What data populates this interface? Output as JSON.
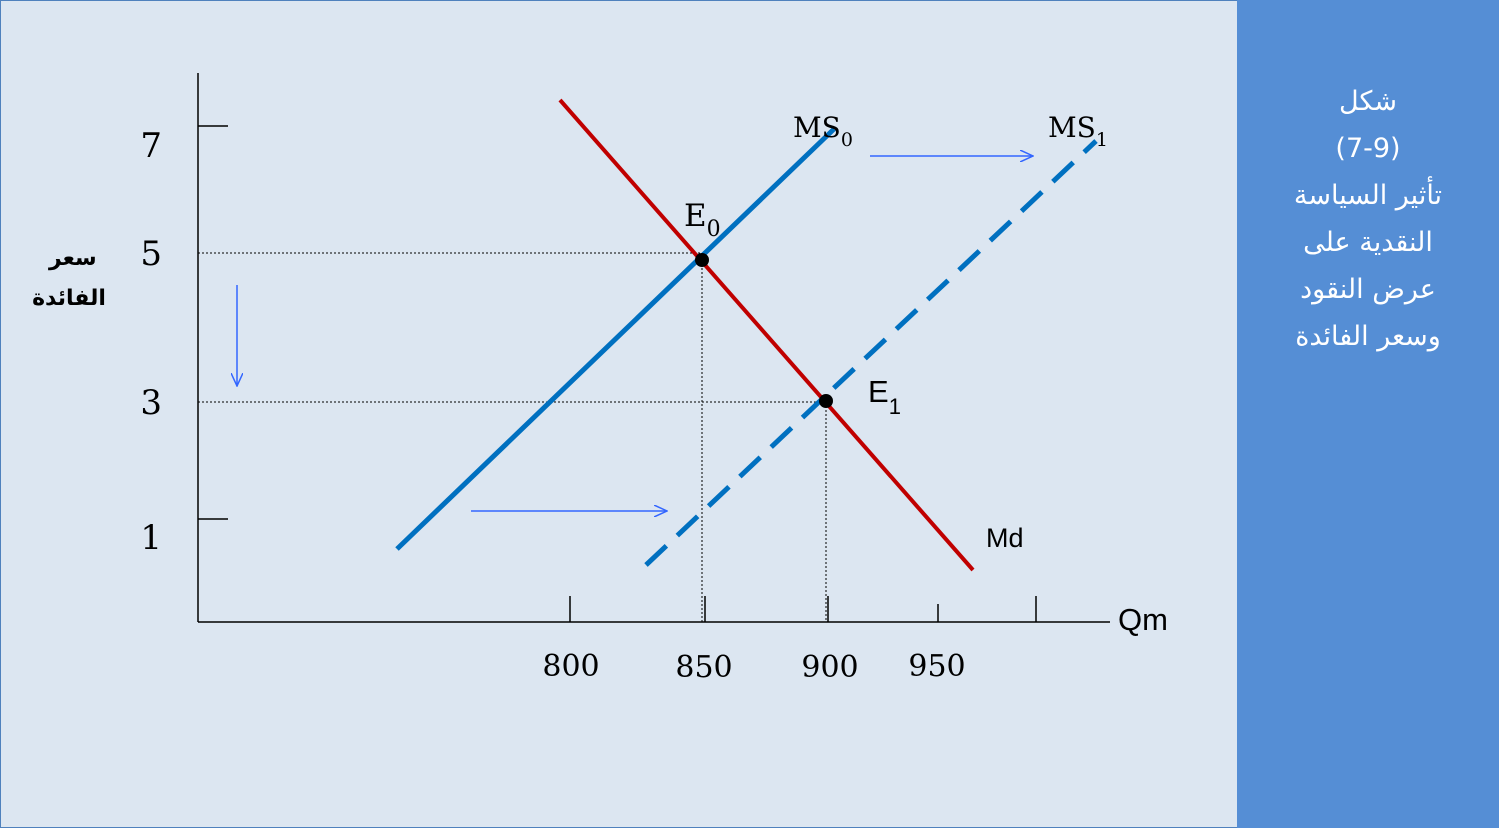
{
  "panel": {
    "lines": [
      "شكل",
      "(7-9)",
      "تأثير السياسة",
      "النقدية على",
      "عرض النقود",
      "وسعر الفائدة"
    ]
  },
  "colors": {
    "background": "#dce6f1",
    "panel": "#558ed5",
    "supply": "#0070c0",
    "demand": "#c00000",
    "arrow": "#3366ff"
  },
  "chart_data": {
    "type": "line",
    "ylabel_lines": [
      "سعر",
      "الفائدة"
    ],
    "xlabel": "Qm",
    "y_ticks": [
      7,
      5,
      3,
      1
    ],
    "x_ticks": [
      800,
      850,
      900,
      950
    ],
    "series": [
      {
        "name": "MS0",
        "label_main": "MS",
        "label_sub": "0",
        "style": "solid",
        "color": "#0070c0"
      },
      {
        "name": "MS1",
        "label_main": "MS",
        "label_sub": "1",
        "style": "dashed",
        "color": "#0070c0"
      },
      {
        "name": "Md",
        "label_main": "Md",
        "label_sub": "",
        "style": "solid",
        "color": "#c00000"
      }
    ],
    "points": [
      {
        "name": "E0",
        "label_main": "E",
        "label_sub": "0",
        "x": 850,
        "y": 5
      },
      {
        "name": "E1",
        "label_main": "E",
        "label_sub": "1",
        "x": 900,
        "y": 3
      }
    ]
  }
}
